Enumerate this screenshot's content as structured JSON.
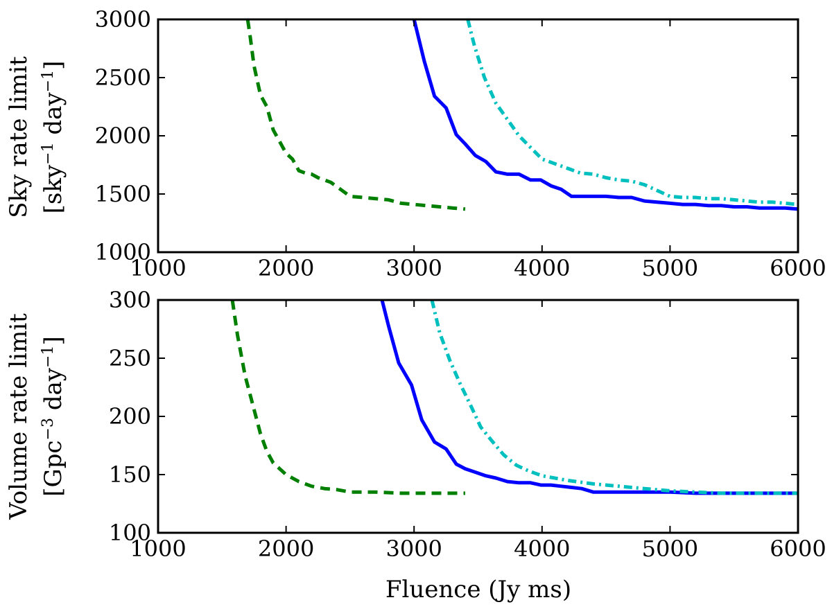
{
  "chart_data": [
    {
      "type": "line",
      "ylabel_line1": "Sky rate limit",
      "ylabel_line2_parts": [
        "[sky",
        "−1",
        " day",
        "−1",
        "]"
      ],
      "xlim": [
        1000,
        6000
      ],
      "ylim": [
        1000,
        3000
      ],
      "xticks": [
        1000,
        2000,
        3000,
        4000,
        5000,
        6000
      ],
      "yticks": [
        1000,
        1500,
        2000,
        2500,
        3000
      ],
      "grid": false,
      "series": [
        {
          "color": "#007f00",
          "style": "dashed",
          "x": [
            1700,
            1720,
            1750,
            1800,
            1850,
            1900,
            1950,
            2000,
            2050,
            2100,
            2150,
            2200,
            2250,
            2300,
            2350,
            2400,
            2450,
            2500,
            2600,
            2700,
            2800,
            2900,
            3000,
            3100,
            3200,
            3300,
            3400
          ],
          "y": [
            3000,
            2850,
            2600,
            2350,
            2250,
            2050,
            1950,
            1850,
            1800,
            1700,
            1680,
            1670,
            1640,
            1620,
            1600,
            1560,
            1520,
            1480,
            1470,
            1460,
            1450,
            1420,
            1410,
            1400,
            1390,
            1380,
            1370
          ]
        },
        {
          "color": "#0000ff",
          "style": "solid",
          "x": [
            3000,
            3080,
            3160,
            3250,
            3330,
            3400,
            3480,
            3560,
            3640,
            3730,
            3820,
            3910,
            3990,
            4070,
            4150,
            4230,
            4310,
            4400,
            4500,
            4600,
            4700,
            4800,
            4900,
            5000,
            5100,
            5200,
            5300,
            5400,
            5500,
            5600,
            5700,
            5800,
            5900,
            6000
          ],
          "y": [
            3000,
            2640,
            2340,
            2240,
            2010,
            1930,
            1830,
            1780,
            1690,
            1670,
            1670,
            1620,
            1620,
            1570,
            1540,
            1480,
            1480,
            1480,
            1480,
            1470,
            1470,
            1440,
            1430,
            1420,
            1410,
            1410,
            1400,
            1400,
            1390,
            1390,
            1380,
            1380,
            1380,
            1370
          ]
        },
        {
          "color": "#00bfbf",
          "style": "dashdot",
          "x": [
            3420,
            3470,
            3550,
            3640,
            3730,
            3820,
            3910,
            4000,
            4100,
            4200,
            4300,
            4400,
            4500,
            4600,
            4700,
            4800,
            4900,
            5000,
            5100,
            5200,
            5300,
            5400,
            5500,
            5600,
            5700,
            5800,
            5900,
            6000
          ],
          "y": [
            3000,
            2780,
            2500,
            2280,
            2140,
            2000,
            1900,
            1800,
            1760,
            1720,
            1680,
            1670,
            1640,
            1620,
            1610,
            1580,
            1530,
            1480,
            1470,
            1470,
            1460,
            1460,
            1450,
            1440,
            1430,
            1430,
            1420,
            1410
          ]
        }
      ]
    },
    {
      "type": "line",
      "xlabel": "Fluence (Jy ms)",
      "ylabel_line1": "Volume rate limit",
      "ylabel_line2_parts": [
        "[Gpc",
        "−3",
        " day",
        "−1",
        "]"
      ],
      "xlim": [
        1000,
        6000
      ],
      "ylim": [
        100,
        300
      ],
      "xticks": [
        1000,
        2000,
        3000,
        4000,
        5000,
        6000
      ],
      "yticks": [
        100,
        150,
        200,
        250,
        300
      ],
      "grid": false,
      "series": [
        {
          "color": "#007f00",
          "style": "dashed",
          "x": [
            1580,
            1620,
            1680,
            1740,
            1800,
            1850,
            1900,
            2000,
            2100,
            2200,
            2300,
            2400,
            2500,
            2700,
            2900,
            3100,
            3300,
            3400
          ],
          "y": [
            300,
            270,
            235,
            210,
            185,
            170,
            160,
            150,
            144,
            140,
            138,
            137,
            135,
            135,
            134,
            134,
            134,
            134
          ]
        },
        {
          "color": "#0000ff",
          "style": "solid",
          "x": [
            2750,
            2800,
            2880,
            2980,
            3060,
            3160,
            3250,
            3330,
            3400,
            3480,
            3560,
            3640,
            3730,
            3820,
            3910,
            3990,
            4070,
            4150,
            4230,
            4310,
            4400,
            4600,
            4800,
            5000,
            5200,
            5400,
            5600,
            5800,
            6000
          ],
          "y": [
            300,
            278,
            246,
            227,
            197,
            178,
            172,
            159,
            155,
            152,
            149,
            147,
            144,
            143,
            143,
            141,
            141,
            140,
            139,
            138,
            135,
            135,
            135,
            135,
            134,
            134,
            134,
            134,
            134
          ]
        },
        {
          "color": "#00bfbf",
          "style": "dashdot",
          "x": [
            3140,
            3200,
            3280,
            3360,
            3440,
            3520,
            3600,
            3700,
            3800,
            3900,
            4000,
            4200,
            4400,
            4600,
            4800,
            5000,
            5200,
            5400,
            5600,
            5800,
            6000
          ],
          "y": [
            300,
            272,
            248,
            228,
            210,
            191,
            180,
            167,
            158,
            153,
            149,
            145,
            142,
            140,
            138,
            136,
            135,
            134,
            134,
            134,
            134
          ]
        }
      ]
    }
  ]
}
